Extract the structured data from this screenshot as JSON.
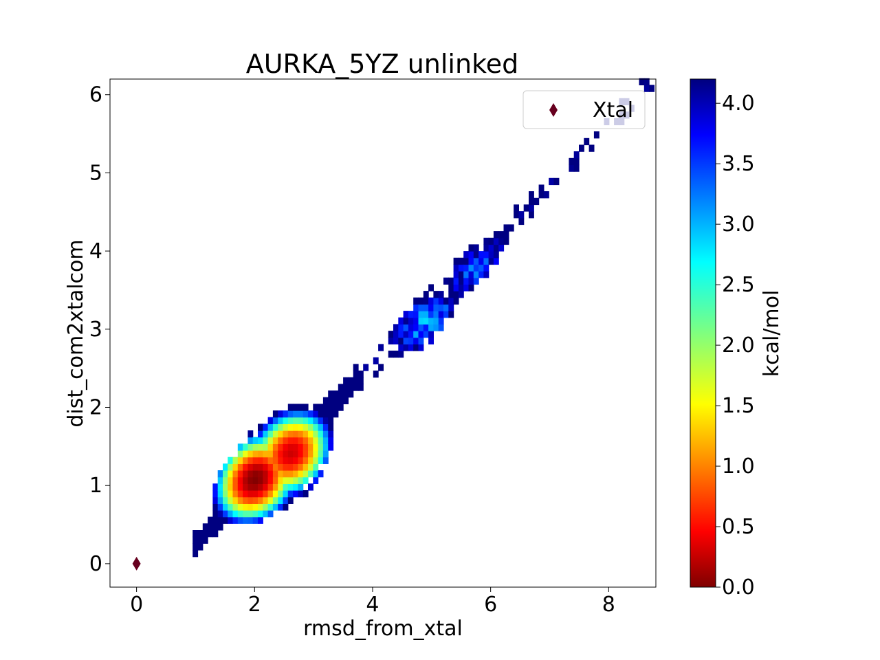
{
  "chart_data": {
    "type": "heatmap",
    "title": "AURKA_5YZ unlinked",
    "xlabel": "rmsd_from_xtal",
    "ylabel": "dist_com2xtalcom",
    "xlim": [
      -0.45,
      8.8
    ],
    "ylim": [
      -0.3,
      6.2
    ],
    "xticks": [
      0,
      2,
      4,
      6,
      8
    ],
    "yticks": [
      0,
      1,
      2,
      3,
      4,
      5,
      6
    ],
    "grid": false,
    "legend": {
      "placement": "top-right",
      "entries": [
        {
          "label": "Xtal",
          "marker": "diamond",
          "color": "#67001f"
        }
      ]
    },
    "xtal_point": {
      "x": 0,
      "y": 0
    },
    "colorbar": {
      "label": "kcal/mol",
      "colormap": "jet_r",
      "range": [
        0.0,
        4.2
      ],
      "ticks": [
        "0.0",
        "0.5",
        "1.0",
        "1.5",
        "2.0",
        "2.5",
        "3.0",
        "3.5",
        "4.0"
      ]
    },
    "free_energy_surface": {
      "bin_width": 0.085,
      "ridge_from": {
        "x": 1.0,
        "y": 0.25
      },
      "ridge_to": {
        "x": 8.8,
        "y": 6.2
      },
      "basins": [
        {
          "x": 1.95,
          "y": 1.05,
          "min_kcal_mol": 0.0
        },
        {
          "x": 2.6,
          "y": 1.35,
          "min_kcal_mol": 0.3
        },
        {
          "x": 5.1,
          "y": 2.9,
          "min_kcal_mol": 2.6
        },
        {
          "x": 6.0,
          "y": 3.6,
          "min_kcal_mol": 2.9
        }
      ]
    }
  }
}
